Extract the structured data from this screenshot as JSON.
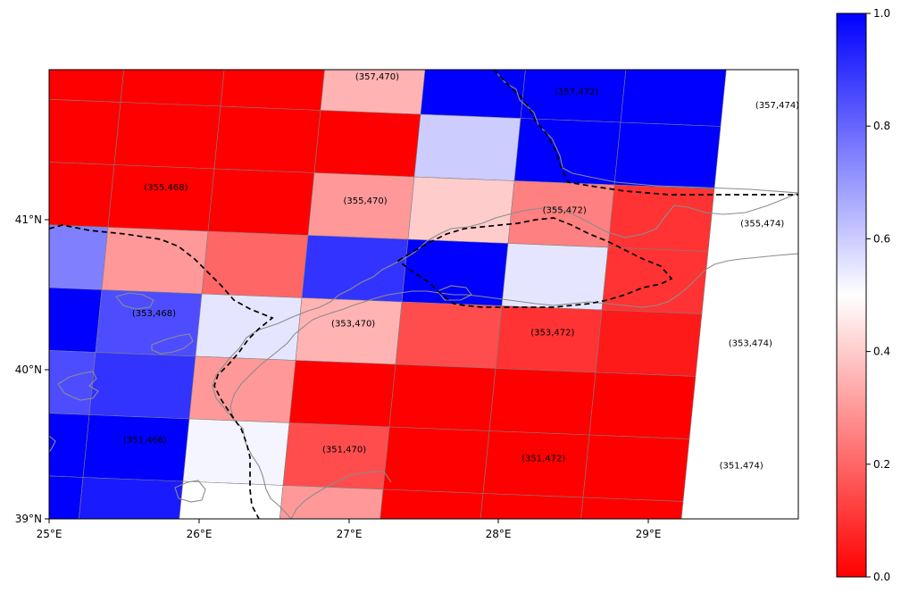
{
  "map": {
    "x_ticks": [
      "25°E",
      "26°E",
      "27°E",
      "28°E",
      "29°E"
    ],
    "y_ticks": [
      "41°N",
      "40°N",
      "39°N"
    ],
    "cell_labels": [
      {
        "text": "(357,470)",
        "lon": 27.19,
        "lat": 41.96
      },
      {
        "text": "(357,472)",
        "lon": 28.52,
        "lat": 41.86
      },
      {
        "text": "(357,474)",
        "lon": 29.86,
        "lat": 41.77
      },
      {
        "text": "(355,468)",
        "lon": 25.78,
        "lat": 41.22
      },
      {
        "text": "(355,470)",
        "lon": 27.11,
        "lat": 41.13
      },
      {
        "text": "(355,472)",
        "lon": 28.44,
        "lat": 41.07
      },
      {
        "text": "(355,474)",
        "lon": 29.76,
        "lat": 40.98
      },
      {
        "text": "(353,468)",
        "lon": 25.7,
        "lat": 40.38
      },
      {
        "text": "(353,470)",
        "lon": 27.03,
        "lat": 40.31
      },
      {
        "text": "(353,472)",
        "lon": 28.36,
        "lat": 40.25
      },
      {
        "text": "(353,474)",
        "lon": 29.68,
        "lat": 40.18
      },
      {
        "text": "(351,468)",
        "lon": 25.64,
        "lat": 39.53
      },
      {
        "text": "(351,470)",
        "lon": 26.97,
        "lat": 39.47
      },
      {
        "text": "(351,472)",
        "lon": 28.3,
        "lat": 39.41
      },
      {
        "text": "(351,474)",
        "lon": 29.62,
        "lat": 39.36
      }
    ],
    "colors": {
      "low": "#ff0000",
      "mid": "#ffffff",
      "high": "#0000ff",
      "coastline": "#8c8c8c",
      "border": "#000000",
      "grid": "#808080"
    }
  },
  "colorbar": {
    "ticks": [
      "0.0",
      "0.2",
      "0.4",
      "0.6",
      "0.8",
      "1.0"
    ],
    "tick_values": [
      0.0,
      0.2,
      0.4,
      0.6,
      0.8,
      1.0
    ],
    "range": [
      0,
      1
    ],
    "colormap": "bwr_r"
  },
  "grid_values": [
    [
      0.0,
      0.0,
      0.0,
      0.35,
      1.0,
      1.0,
      1.0
    ],
    [
      0.0,
      0.0,
      0.0,
      0.0,
      0.6,
      1.0,
      1.0
    ],
    [
      0.0,
      0.0,
      0.0,
      0.3,
      0.4,
      0.25,
      0.1
    ],
    [
      0.75,
      0.3,
      0.2,
      0.9,
      1.0,
      0.55,
      0.1
    ],
    [
      1.0,
      0.85,
      0.55,
      0.35,
      0.15,
      0.1,
      0.05
    ],
    [
      0.85,
      0.9,
      0.3,
      0.0,
      0.0,
      0.0,
      0.0
    ],
    [
      1.0,
      1.0,
      0.52,
      0.15,
      0.0,
      0.0,
      0.0
    ],
    [
      1.0,
      0.95,
      0.5,
      0.3,
      0.0,
      0.0,
      0.0
    ]
  ]
}
